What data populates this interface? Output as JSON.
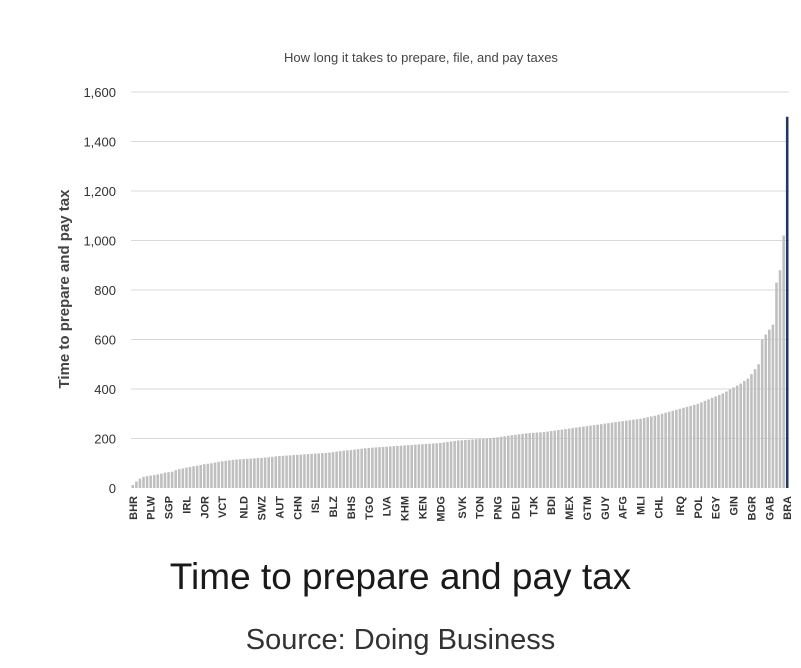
{
  "caption": {
    "title": "Time to prepare and pay tax",
    "source": "Source: Doing Business"
  },
  "chart_data": {
    "type": "bar",
    "title": "How long it takes to prepare, file, and pay taxes",
    "xlabel": "",
    "ylabel": "Time to prepare and pay tax",
    "ylim": [
      0,
      1600
    ],
    "yticks": [
      0,
      200,
      400,
      600,
      800,
      1000,
      1200,
      1400,
      1600
    ],
    "ytick_labels": [
      "0",
      "200",
      "400",
      "600",
      "800",
      "1,000",
      "1,200",
      "1,400",
      "1,600"
    ],
    "grid": true,
    "bar_color": "#bfbfbf",
    "highlight_color": "#1f3864",
    "highlight_category": "BRA",
    "labeled_categories": [
      "BHR",
      "PLW",
      "SGP",
      "IRL",
      "JOR",
      "VCT",
      "NLD",
      "SWZ",
      "AUT",
      "CHN",
      "ISL",
      "BLZ",
      "BHS",
      "TGO",
      "LVA",
      "KHM",
      "KEN",
      "MDG",
      "SVK",
      "TON",
      "PNG",
      "DEU",
      "TJK",
      "BDI",
      "MEX",
      "GTM",
      "GUY",
      "AFG",
      "MLI",
      "CHL",
      "IRQ",
      "POL",
      "EGY",
      "GIN",
      "BGR",
      "GAB",
      "BRA"
    ],
    "values": [
      12,
      26,
      38,
      45,
      48,
      50,
      52,
      55,
      58,
      62,
      64,
      66,
      72,
      76,
      79,
      82,
      85,
      88,
      90,
      93,
      96,
      98,
      100,
      103,
      106,
      108,
      110,
      112,
      114,
      115,
      116,
      117,
      118,
      119,
      120,
      121,
      122,
      123,
      124,
      126,
      128,
      129,
      130,
      131,
      132,
      133,
      134,
      135,
      136,
      137,
      138,
      139,
      140,
      141,
      142,
      143,
      145,
      147,
      149,
      151,
      152,
      153,
      155,
      157,
      159,
      160,
      162,
      163,
      164,
      165,
      166,
      167,
      168,
      169,
      170,
      171,
      172,
      173,
      174,
      175,
      176,
      177,
      178,
      179,
      180,
      181,
      182,
      184,
      186,
      188,
      190,
      192,
      193,
      194,
      195,
      196,
      197,
      198,
      199,
      200,
      201,
      203,
      205,
      207,
      209,
      211,
      213,
      215,
      217,
      219,
      221,
      222,
      223,
      224,
      225,
      226,
      228,
      230,
      232,
      234,
      236,
      238,
      240,
      242,
      244,
      246,
      248,
      250,
      252,
      254,
      256,
      258,
      260,
      262,
      264,
      266,
      268,
      270,
      272,
      274,
      276,
      278,
      280,
      283,
      286,
      289,
      292,
      296,
      300,
      304,
      308,
      312,
      316,
      320,
      324,
      328,
      332,
      336,
      340,
      346,
      352,
      358,
      364,
      370,
      376,
      382,
      390,
      398,
      406,
      414,
      422,
      432,
      442,
      460,
      480,
      500,
      600,
      620,
      640,
      660,
      830,
      880,
      1020,
      1500
    ]
  }
}
